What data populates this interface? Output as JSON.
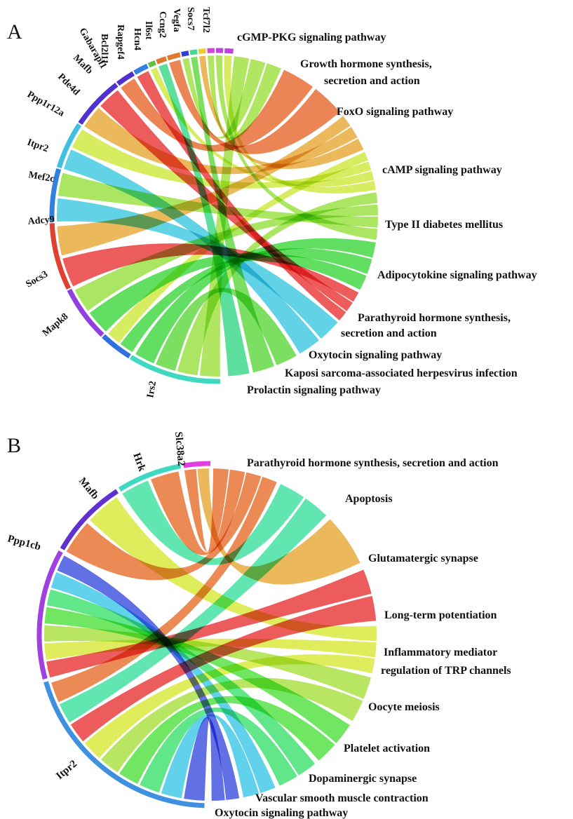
{
  "panels": [
    {
      "letter": "A",
      "genes": [
        {
          "label": "Tcf7l2",
          "color": "#c040e0"
        },
        {
          "label": "Socs7",
          "color": "#c040e0"
        },
        {
          "label": "Vegfa",
          "color": "#d444d8"
        },
        {
          "label": "Ccng2",
          "color": "#e8d030"
        },
        {
          "label": "Il6st",
          "color": "#40d890"
        },
        {
          "label": "Hcn4",
          "color": "#3040d0"
        },
        {
          "label": "Rapgef4",
          "color": "#e07830"
        },
        {
          "label": "Bcl2l11",
          "color": "#e07830"
        },
        {
          "label": "Gabarapl1",
          "color": "#60c040"
        },
        {
          "label": "Mafb",
          "color": "#3080e0"
        },
        {
          "label": "Pde4d",
          "color": "#5030d0"
        },
        {
          "label": "Ppp1r12a",
          "color": "#5030d0"
        },
        {
          "label": "Itpr2",
          "color": "#40c0e0"
        },
        {
          "label": "Mef2c",
          "color": "#3080e0"
        },
        {
          "label": "Adcy9",
          "color": "#e04030"
        },
        {
          "label": "Socs3",
          "color": "#9040e0"
        },
        {
          "label": "Mapk8",
          "color": "#3070e0"
        },
        {
          "label": "Irs2",
          "color": "#40d8c0"
        }
      ],
      "pathways": [
        {
          "label": "cGMP-PKG signaling pathway",
          "color": "#a0e040"
        },
        {
          "label": "Growth hormone synthesis,",
          "label2": "secretion and action",
          "color": "#e86a30"
        },
        {
          "label": "FoxO signaling pathway",
          "color": "#e8a838"
        },
        {
          "label": "cAMP signaling pathway",
          "color": "#d0e840"
        },
        {
          "label": "Type II diabetes mellitus",
          "color": "#98e040"
        },
        {
          "label": "Adipocytokine signaling pathway",
          "color": "#40d840"
        },
        {
          "label": "Parathyroid hormone synthesis,",
          "label2": "secretion and action",
          "color": "#e83838"
        },
        {
          "label": "Oxytocin signaling pathway",
          "color": "#40c8e0"
        },
        {
          "label": "Kaposi sarcoma-associated herpesvirus infection",
          "color": "#60d840"
        },
        {
          "label": "Prolactin signaling pathway",
          "color": "#38d888"
        }
      ]
    },
    {
      "letter": "B",
      "genes": [
        {
          "label": "Slc38a2",
          "color": "#e040e0"
        },
        {
          "label": "Hrk",
          "color": "#40d8c0"
        },
        {
          "label": "Mafb",
          "color": "#6030d0"
        },
        {
          "label": "Ppp1cb",
          "color": "#a040e0"
        },
        {
          "label": "Itpr2",
          "color": "#4090e0"
        }
      ],
      "pathways": [
        {
          "label": "Parathyroid hormone synthesis, secretion and action",
          "color": "#e87030"
        },
        {
          "label": "Apoptosis",
          "color": "#40e0a0"
        },
        {
          "label": "Glutamatergic synapse",
          "color": "#e8a838"
        },
        {
          "label": "Long-term potentiation",
          "color": "#e83838"
        },
        {
          "label": "Inflammatory  mediator",
          "label2": "regulation of TRP channels",
          "color": "#d8e838"
        },
        {
          "label": "Oocyte meiosis",
          "color": "#a8e040"
        },
        {
          "label": "Platelet activation",
          "color": "#50e040"
        },
        {
          "label": "Dopaminergic synapse",
          "color": "#40e070"
        },
        {
          "label": "Vascular smooth muscle contraction",
          "color": "#40c8e8"
        },
        {
          "label": "Oxytocin signaling pathway",
          "color": "#4050e0"
        }
      ]
    }
  ]
}
